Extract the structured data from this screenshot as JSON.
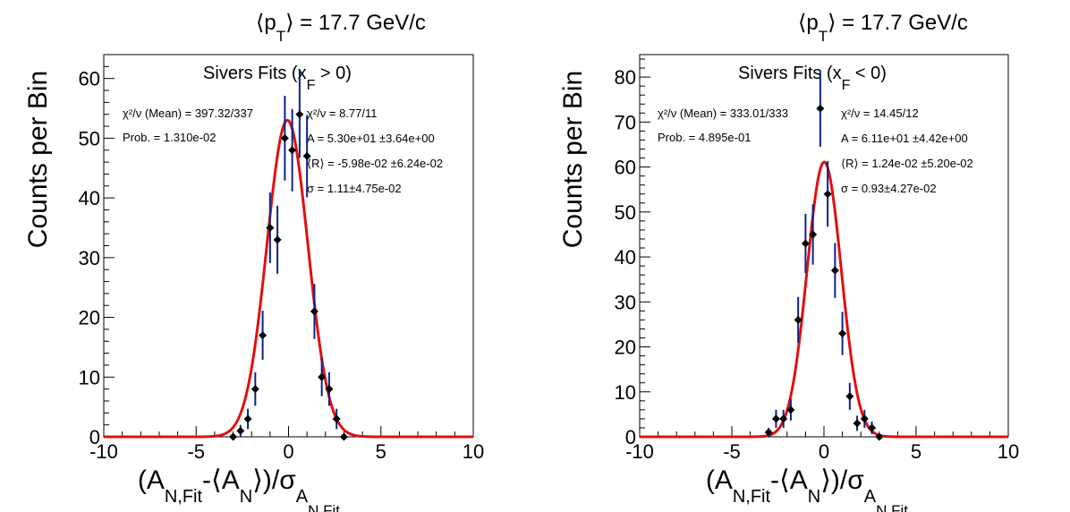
{
  "chart_data": [
    {
      "type": "scatter",
      "title": "⟨p_T⟩ = 17.7 GeV/c",
      "xlabel": "(A_N,Fit-⟨A_N⟩)/σ_A_N,Fit",
      "ylabel": "Counts per Bin",
      "xlim": [
        -10,
        10
      ],
      "ylim": [
        0,
        64
      ],
      "xticks": [
        "-10",
        "-5",
        "0",
        "5",
        "10"
      ],
      "yticks": [
        "0",
        "10",
        "20",
        "30",
        "40",
        "50",
        "60"
      ],
      "legend": {
        "header": "Sivers Fits (x_F > 0)",
        "stats": [
          "χ²/ν (Mean) = 397.32/337",
          "Prob. = 1.310e-02"
        ],
        "fit": [
          "χ²/ν = 8.77/11",
          "A = 5.30e+01 ±3.64e+00",
          "⟨R⟩ = -5.98e-02 ±6.24e-02",
          "σ = 1.11±4.75e-02"
        ]
      },
      "series": [
        {
          "type": "errorbar",
          "color": "#000000",
          "errorColor": "#0a2390",
          "x": [
            -3.0,
            -2.6,
            -2.2,
            -1.8,
            -1.4,
            -1.0,
            -0.6,
            -0.2,
            0.2,
            0.6,
            1.0,
            1.4,
            1.8,
            2.2,
            2.6,
            3.0
          ],
          "y": [
            0,
            1,
            3,
            8,
            17,
            35,
            33,
            50,
            48,
            54,
            47,
            21,
            10,
            8,
            3,
            0
          ],
          "yerr": [
            0,
            1.0,
            1.7,
            2.8,
            4.1,
            5.9,
            5.7,
            7.1,
            6.9,
            7.3,
            6.9,
            4.6,
            3.2,
            2.8,
            1.7,
            0
          ]
        },
        {
          "type": "fit",
          "function": "gaussian",
          "color": "#e01010",
          "A": 53.0,
          "mean": -0.0598,
          "sigma": 1.11
        }
      ]
    },
    {
      "type": "scatter",
      "title": "⟨p_T⟩ = 17.7 GeV/c",
      "xlabel": "(A_N,Fit-⟨A_N⟩)/σ_A_N,Fit",
      "ylabel": "Counts per Bin",
      "xlim": [
        -10,
        10
      ],
      "ylim": [
        0,
        85
      ],
      "xticks": [
        "-10",
        "-5",
        "0",
        "5",
        "10"
      ],
      "yticks": [
        "0",
        "10",
        "20",
        "30",
        "40",
        "50",
        "60",
        "70",
        "80"
      ],
      "legend": {
        "header": "Sivers Fits (x_F < 0)",
        "stats": [
          "χ²/ν (Mean) = 333.01/333",
          "Prob. = 4.895e-01"
        ],
        "fit": [
          "χ²/ν = 14.45/12",
          "A = 6.11e+01 ±4.42e+00",
          "⟨R⟩ = 1.24e-02 ±5.20e-02",
          "σ = 0.93±4.27e-02"
        ]
      },
      "series": [
        {
          "type": "errorbar",
          "color": "#000000",
          "errorColor": "#0a2390",
          "x": [
            -3.0,
            -2.6,
            -2.2,
            -1.8,
            -1.4,
            -1.0,
            -0.6,
            -0.2,
            0.2,
            0.6,
            1.0,
            1.4,
            1.8,
            2.2,
            2.6,
            3.0
          ],
          "y": [
            1,
            4,
            4,
            6,
            26,
            43,
            45,
            73,
            54,
            37,
            23,
            9,
            3,
            4,
            2,
            0
          ],
          "yerr": [
            1.0,
            2.0,
            2.0,
            2.4,
            5.1,
            6.6,
            6.7,
            8.5,
            7.3,
            6.1,
            4.8,
            3.0,
            1.7,
            2.0,
            1.4,
            0
          ]
        },
        {
          "type": "fit",
          "function": "gaussian",
          "color": "#e01010",
          "A": 61.1,
          "mean": 0.0124,
          "sigma": 0.93
        }
      ]
    }
  ]
}
